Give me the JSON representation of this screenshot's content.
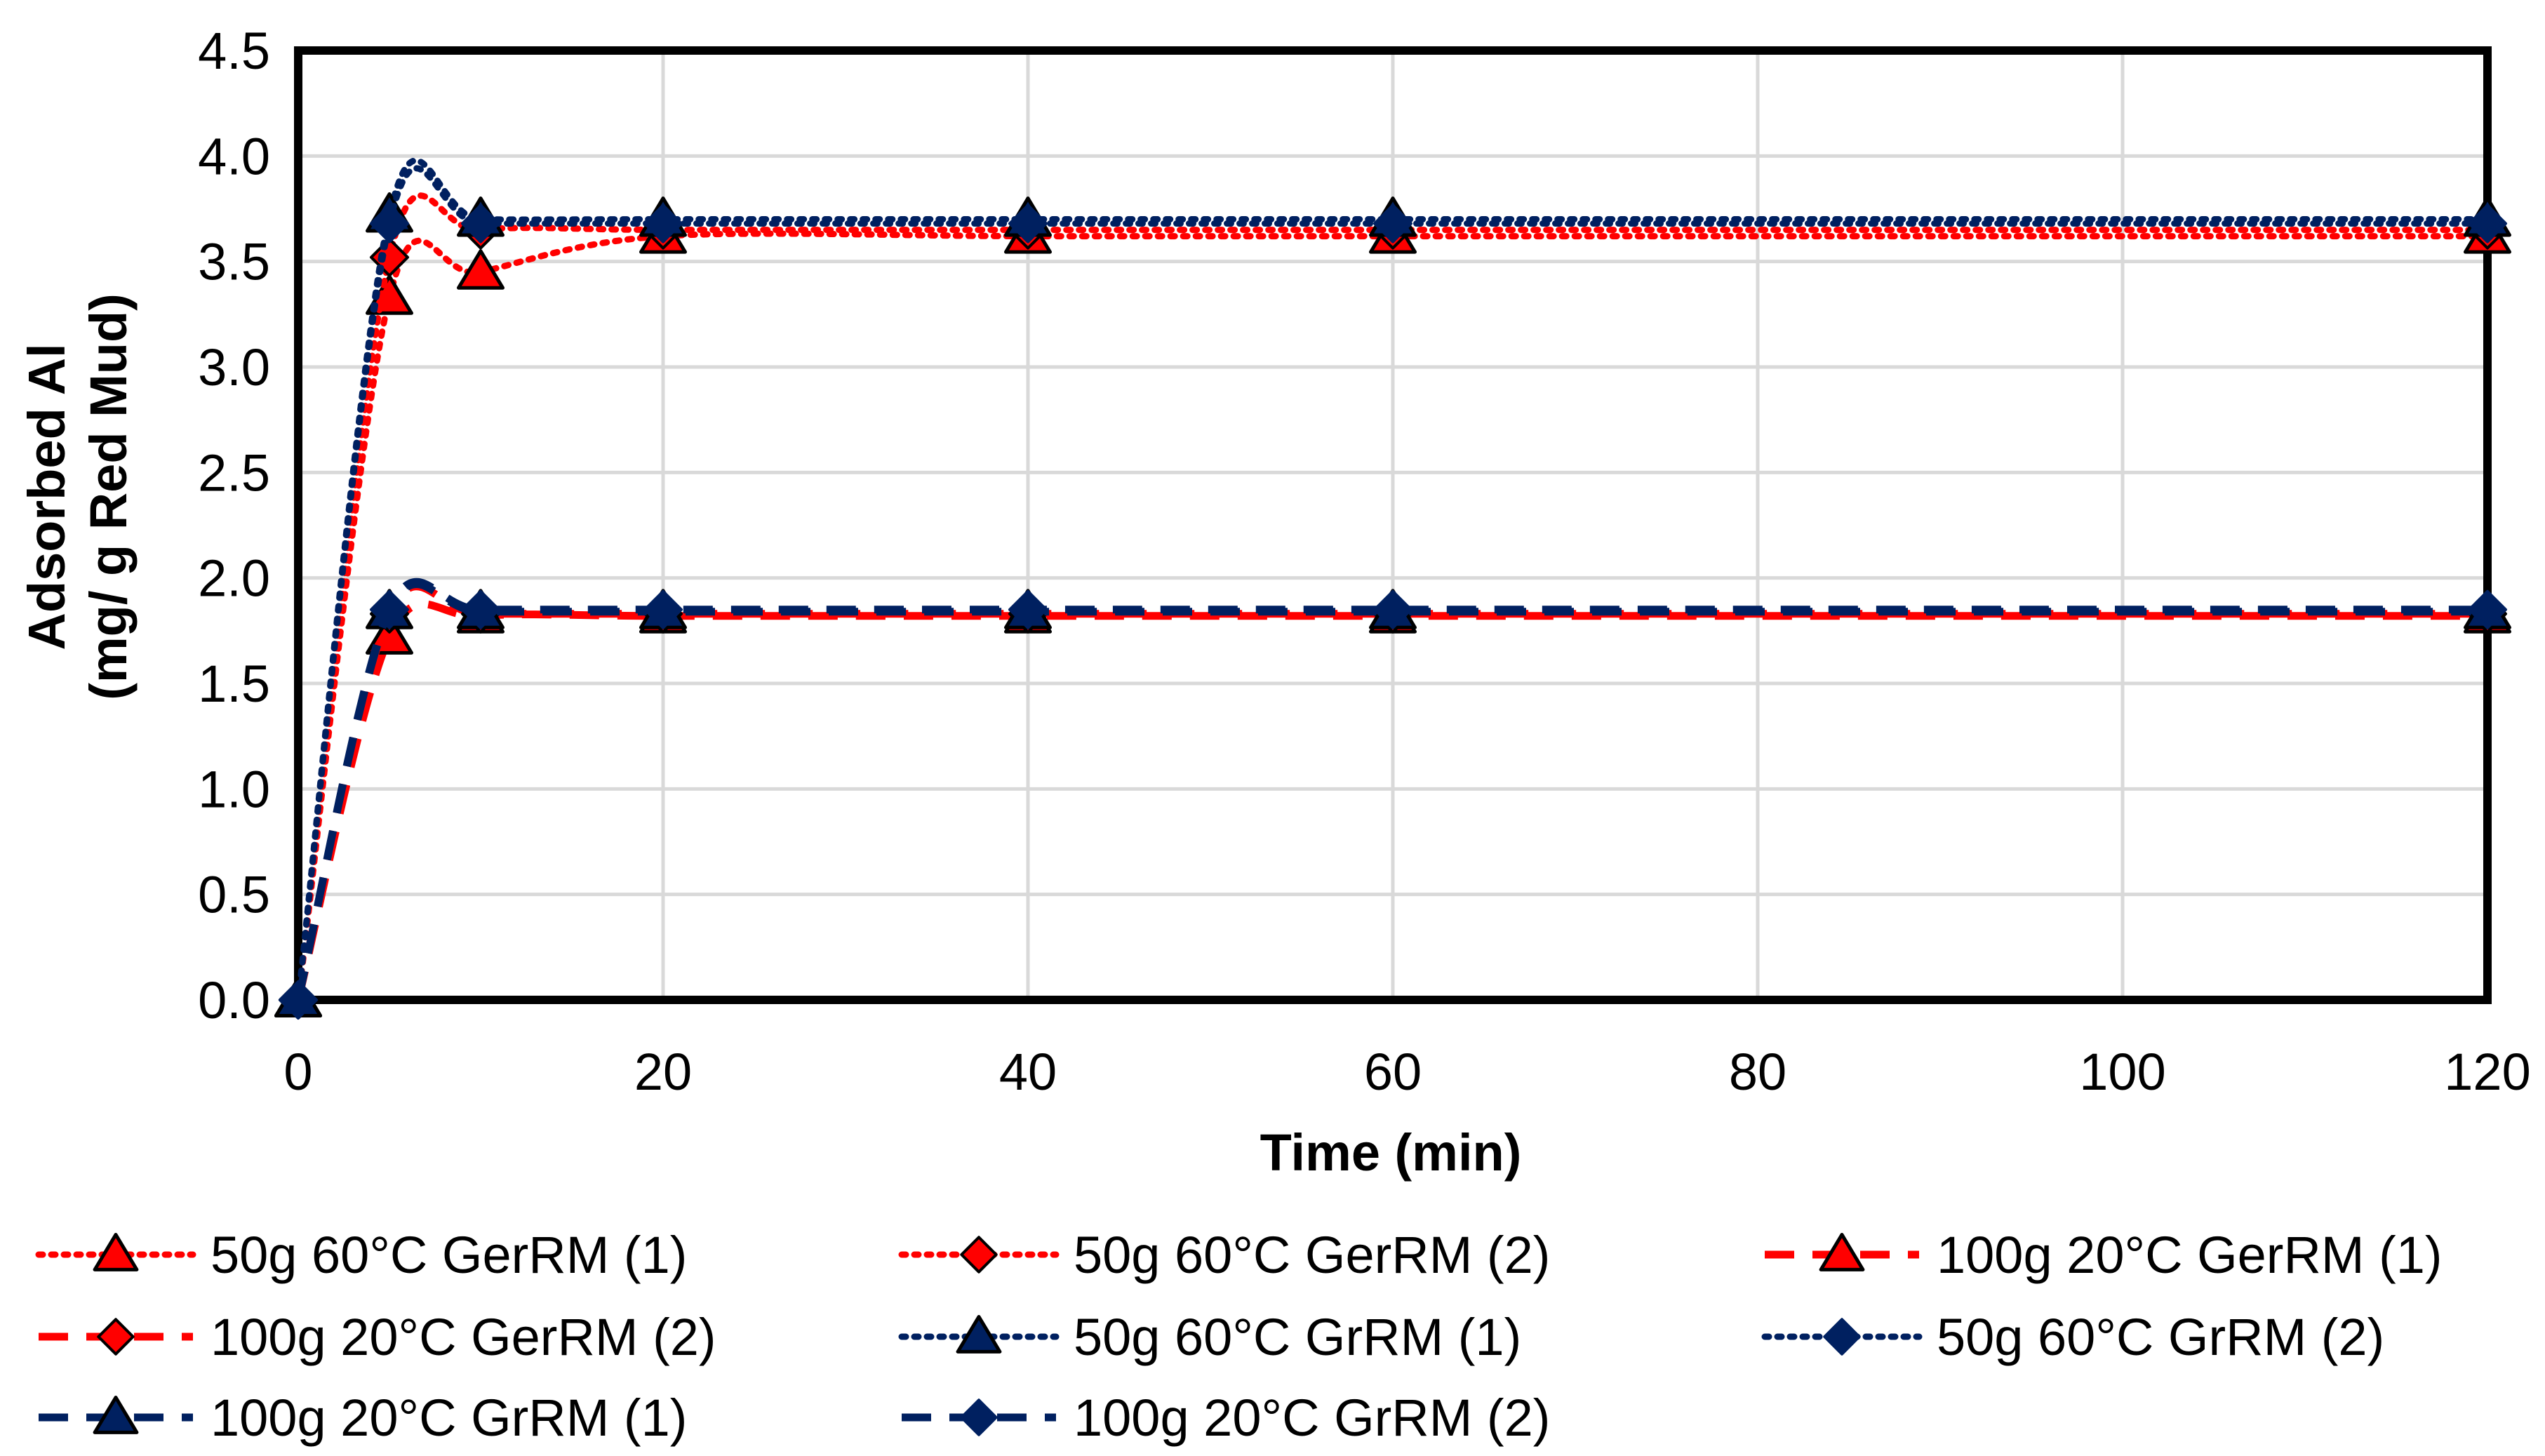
{
  "chart_data": {
    "type": "line",
    "title": "",
    "xlabel": "Time (min)",
    "ylabel_line1": "Adsorbed Al",
    "ylabel_line2": "(mg/ g Red Mud)",
    "xlim": [
      0,
      120
    ],
    "ylim": [
      0,
      4.5
    ],
    "x_ticks": [
      0,
      20,
      40,
      60,
      80,
      100,
      120
    ],
    "x_tick_labels": [
      "0",
      "20",
      "40",
      "60",
      "80",
      "100",
      "120"
    ],
    "y_ticks": [
      0,
      0.5,
      1,
      1.5,
      2,
      2.5,
      3,
      3.5,
      4,
      4.5
    ],
    "y_tick_labels": [
      "0.0",
      "0.5",
      "1.0",
      "1.5",
      "2.0",
      "2.5",
      "3.0",
      "3.5",
      "4.0",
      "4.5"
    ],
    "grid": true,
    "legend_position": "bottom",
    "x": [
      0,
      5,
      10,
      20,
      40,
      60,
      120
    ],
    "colors": {
      "ger_fill": "#FF0000",
      "ger_line": "#FF0000",
      "gr_fill": "#002060",
      "gr_line": "#002060",
      "grid": "#D9D9D9",
      "frame": "#000000"
    },
    "series": [
      {
        "name": "50g 60°C GerRM (1)",
        "values": [
          0,
          3.33,
          3.45,
          3.62,
          3.62,
          3.62,
          3.62
        ],
        "color": "#FF0000",
        "line_style": "dotted",
        "marker": "triangle"
      },
      {
        "name": "50g 60°C GerRM (2)",
        "values": [
          0,
          3.52,
          3.65,
          3.65,
          3.65,
          3.65,
          3.65
        ],
        "color": "#FF0000",
        "line_style": "dotted",
        "marker": "diamond"
      },
      {
        "name": "100g 20°C GerRM (1)",
        "values": [
          0,
          1.72,
          1.82,
          1.82,
          1.82,
          1.82,
          1.82
        ],
        "color": "#FF0000",
        "line_style": "dashed",
        "marker": "triangle"
      },
      {
        "name": "100g 20°C GerRM (2)",
        "values": [
          0,
          1.83,
          1.83,
          1.83,
          1.83,
          1.83,
          1.83
        ],
        "color": "#FF0000",
        "line_style": "dashed",
        "marker": "diamond"
      },
      {
        "name": "50g 60°C GrRM (1)",
        "values": [
          0,
          3.72,
          3.7,
          3.7,
          3.7,
          3.7,
          3.7
        ],
        "color": "#002060",
        "line_style": "dotted",
        "marker": "triangle"
      },
      {
        "name": "50g 60°C GrRM (2)",
        "values": [
          0,
          3.68,
          3.68,
          3.68,
          3.68,
          3.68,
          3.68
        ],
        "color": "#002060",
        "line_style": "dotted",
        "marker": "diamond"
      },
      {
        "name": "100g 20°C GrRM (1)",
        "values": [
          0,
          1.84,
          1.84,
          1.84,
          1.84,
          1.84,
          1.84
        ],
        "color": "#002060",
        "line_style": "dashed",
        "marker": "triangle"
      },
      {
        "name": "100g 20°C GrRM (2)",
        "values": [
          0,
          1.85,
          1.85,
          1.85,
          1.85,
          1.85,
          1.85
        ],
        "color": "#002060",
        "line_style": "dashed",
        "marker": "diamond"
      }
    ]
  }
}
